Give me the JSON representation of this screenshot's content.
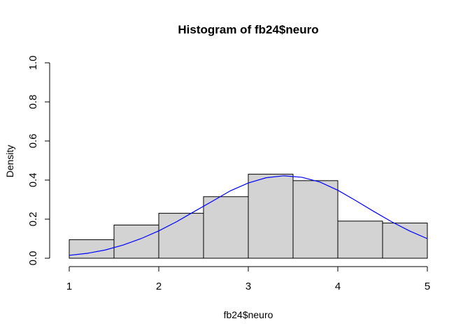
{
  "chart_data": {
    "type": "bar",
    "title": "Histogram of fb24$neuro",
    "xlabel": "fb24$neuro",
    "ylabel": "Density",
    "xlim": [
      1,
      5
    ],
    "ylim": [
      0,
      1
    ],
    "x_ticks": [
      1,
      2,
      3,
      4,
      5
    ],
    "y_ticks": [
      0.0,
      0.2,
      0.4,
      0.6,
      0.8,
      1.0
    ],
    "y_tick_labels": [
      "0.0",
      "0.2",
      "0.4",
      "0.6",
      "0.8",
      "1.0"
    ],
    "bins": [
      {
        "start": 1.0,
        "end": 1.5,
        "density": 0.095
      },
      {
        "start": 1.5,
        "end": 2.0,
        "density": 0.17
      },
      {
        "start": 2.0,
        "end": 2.5,
        "density": 0.23
      },
      {
        "start": 2.5,
        "end": 3.0,
        "density": 0.315
      },
      {
        "start": 3.0,
        "end": 3.5,
        "density": 0.43
      },
      {
        "start": 3.5,
        "end": 4.0,
        "density": 0.397
      },
      {
        "start": 4.0,
        "end": 4.5,
        "density": 0.19
      },
      {
        "start": 4.5,
        "end": 5.0,
        "density": 0.18
      }
    ],
    "density_curve": {
      "color": "#0000ff",
      "points": [
        [
          1.0,
          0.015
        ],
        [
          1.2,
          0.025
        ],
        [
          1.4,
          0.042
        ],
        [
          1.6,
          0.067
        ],
        [
          1.8,
          0.1
        ],
        [
          2.0,
          0.14
        ],
        [
          2.2,
          0.187
        ],
        [
          2.4,
          0.24
        ],
        [
          2.6,
          0.292
        ],
        [
          2.8,
          0.345
        ],
        [
          3.0,
          0.385
        ],
        [
          3.2,
          0.412
        ],
        [
          3.4,
          0.422
        ],
        [
          3.6,
          0.414
        ],
        [
          3.8,
          0.39
        ],
        [
          4.0,
          0.348
        ],
        [
          4.2,
          0.295
        ],
        [
          4.4,
          0.24
        ],
        [
          4.6,
          0.187
        ],
        [
          4.8,
          0.14
        ],
        [
          5.0,
          0.1
        ]
      ]
    },
    "bar_fill": "#d3d3d3"
  }
}
